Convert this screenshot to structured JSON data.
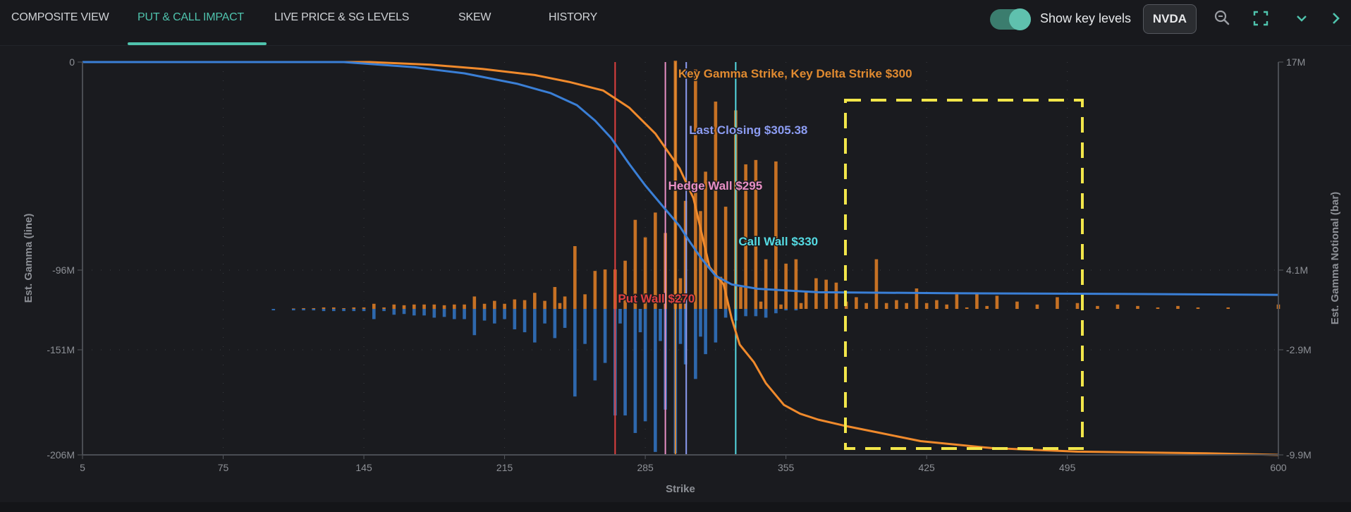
{
  "tabs": [
    {
      "label": "COMPOSITE VIEW",
      "active": false
    },
    {
      "label": "PUT & CALL IMPACT",
      "active": true
    },
    {
      "label": "LIVE PRICE & SG LEVELS",
      "active": false
    },
    {
      "label": "SKEW",
      "active": false
    },
    {
      "label": "HISTORY",
      "active": false
    }
  ],
  "controls": {
    "show_key_levels_label": "Show key levels",
    "show_key_levels_on": true,
    "ticker": "NVDA",
    "icons": [
      "zoom-out-icon",
      "fullscreen-icon",
      "chevron-down-icon",
      "chevron-right-icon"
    ]
  },
  "colors": {
    "accent": "#4fc3ad",
    "call_bar": "#d97b25",
    "put_bar": "#2f6db5",
    "gamma_line_orange": "#f08a2c",
    "gamma_line_blue": "#3a7fd6",
    "highlight_box": "#f2e64a"
  },
  "chart_data": {
    "type": "bar+line",
    "xlabel": "Strike",
    "ylabel_left": "Est. Gamma (line)",
    "ylabel_right": "Est. Gamma Notional (bar)",
    "xlim": [
      5,
      600
    ],
    "x_ticks": [
      "5",
      "75",
      "145",
      "215",
      "285",
      "355",
      "425",
      "495",
      "600"
    ],
    "y_left_ticks": [
      "0",
      "-96M",
      "-151M",
      "-206M"
    ],
    "y_right_ticks": [
      "17M",
      "4.1M",
      "-2.9M",
      "-9.9M"
    ],
    "y_left_range_M": [
      -206,
      0
    ],
    "y_right_range_M": [
      -9.9,
      17
    ],
    "key_levels": [
      {
        "label": "Put Wall $270",
        "strike": 270,
        "color": "#e0403f"
      },
      {
        "label": "Hedge Wall $295",
        "strike": 295,
        "color": "#e88fc4"
      },
      {
        "label": "Key Gamma Strike, Key Delta Strike $300",
        "strike": 300,
        "color": "#e08a30"
      },
      {
        "label": "Last Closing $305.38",
        "strike": 305.38,
        "color": "#8c9cf2"
      },
      {
        "label": "Call Wall $330",
        "strike": 330,
        "color": "#55dbe3"
      }
    ],
    "call_bars_M": [
      [
        110,
        0.03
      ],
      [
        115,
        0.05
      ],
      [
        120,
        0.05
      ],
      [
        125,
        0.1
      ],
      [
        130,
        0.1
      ],
      [
        135,
        0.05
      ],
      [
        140,
        0.1
      ],
      [
        145,
        0.1
      ],
      [
        150,
        0.35
      ],
      [
        155,
        0.1
      ],
      [
        160,
        0.3
      ],
      [
        165,
        0.25
      ],
      [
        170,
        0.3
      ],
      [
        175,
        0.3
      ],
      [
        180,
        0.3
      ],
      [
        185,
        0.25
      ],
      [
        190,
        0.3
      ],
      [
        195,
        0.3
      ],
      [
        200,
        0.85
      ],
      [
        205,
        0.35
      ],
      [
        210,
        0.55
      ],
      [
        215,
        0.35
      ],
      [
        220,
        0.65
      ],
      [
        225,
        0.6
      ],
      [
        230,
        1.1
      ],
      [
        235,
        0.55
      ],
      [
        240,
        1.5
      ],
      [
        242.5,
        0.4
      ],
      [
        245,
        0.85
      ],
      [
        250,
        4.3
      ],
      [
        255,
        1.0
      ],
      [
        260,
        2.6
      ],
      [
        265,
        2.7
      ],
      [
        270,
        2.7
      ],
      [
        275,
        3.3
      ],
      [
        280,
        6.1
      ],
      [
        285,
        4.9
      ],
      [
        290,
        6.6
      ],
      [
        295,
        5.2
      ],
      [
        300,
        17.0
      ],
      [
        302.5,
        2.1
      ],
      [
        305,
        7.4
      ],
      [
        310,
        16.4
      ],
      [
        312.5,
        6.7
      ],
      [
        315,
        9.4
      ],
      [
        320,
        14.2
      ],
      [
        322.5,
        2.2
      ],
      [
        325,
        7.0
      ],
      [
        330,
        13.6
      ],
      [
        332.5,
        1.5
      ],
      [
        335,
        9.9
      ],
      [
        340,
        10.2
      ],
      [
        342.5,
        0.5
      ],
      [
        345,
        3.4
      ],
      [
        350,
        10.1
      ],
      [
        352.5,
        0.3
      ],
      [
        355,
        3.1
      ],
      [
        360,
        3.4
      ],
      [
        362.5,
        0.4
      ],
      [
        365,
        1.2
      ],
      [
        370,
        2.1
      ],
      [
        375,
        2.0
      ],
      [
        380,
        1.8
      ],
      [
        385,
        0.5
      ],
      [
        390,
        0.8
      ],
      [
        395,
        0.4
      ],
      [
        400,
        3.4
      ],
      [
        405,
        0.4
      ],
      [
        410,
        0.6
      ],
      [
        415,
        0.4
      ],
      [
        420,
        1.4
      ],
      [
        425,
        0.4
      ],
      [
        430,
        0.6
      ],
      [
        435,
        0.3
      ],
      [
        440,
        1.0
      ],
      [
        445,
        0.1
      ],
      [
        450,
        1.1
      ],
      [
        455,
        0.2
      ],
      [
        460,
        0.9
      ],
      [
        470,
        0.5
      ],
      [
        480,
        0.3
      ],
      [
        490,
        0.8
      ],
      [
        500,
        0.4
      ],
      [
        510,
        0.2
      ],
      [
        520,
        0.3
      ],
      [
        530,
        0.2
      ],
      [
        540,
        0.1
      ],
      [
        550,
        0.2
      ],
      [
        560,
        0.1
      ],
      [
        575,
        0.1
      ],
      [
        600,
        0.3
      ]
    ],
    "put_bars_M": [
      [
        100,
        -0.1
      ],
      [
        110,
        -0.1
      ],
      [
        115,
        -0.1
      ],
      [
        120,
        -0.1
      ],
      [
        125,
        -0.15
      ],
      [
        130,
        -0.15
      ],
      [
        135,
        -0.15
      ],
      [
        140,
        -0.15
      ],
      [
        145,
        -0.15
      ],
      [
        150,
        -0.7
      ],
      [
        155,
        -0.15
      ],
      [
        160,
        -0.4
      ],
      [
        165,
        -0.35
      ],
      [
        170,
        -0.45
      ],
      [
        175,
        -0.45
      ],
      [
        180,
        -0.6
      ],
      [
        185,
        -0.55
      ],
      [
        190,
        -0.7
      ],
      [
        195,
        -0.7
      ],
      [
        200,
        -1.8
      ],
      [
        205,
        -0.8
      ],
      [
        210,
        -1.0
      ],
      [
        215,
        -0.7
      ],
      [
        220,
        -1.4
      ],
      [
        225,
        -1.6
      ],
      [
        230,
        -2.3
      ],
      [
        235,
        -1.0
      ],
      [
        240,
        -2.0
      ],
      [
        245,
        -1.3
      ],
      [
        250,
        -6.0
      ],
      [
        255,
        -2.4
      ],
      [
        260,
        -4.9
      ],
      [
        265,
        -3.7
      ],
      [
        270,
        -7.3
      ],
      [
        272.5,
        -1.0
      ],
      [
        275,
        -7.3
      ],
      [
        280,
        -8.5
      ],
      [
        282.5,
        -1.6
      ],
      [
        285,
        -7.7
      ],
      [
        290,
        -9.8
      ],
      [
        292.5,
        -2.2
      ],
      [
        295,
        -6.9
      ],
      [
        300,
        -9.9
      ],
      [
        302.5,
        -2.4
      ],
      [
        305,
        -3.8
      ],
      [
        310,
        -4.8
      ],
      [
        312.5,
        -1.9
      ],
      [
        315,
        -3.1
      ],
      [
        320,
        -2.3
      ],
      [
        325,
        -0.6
      ],
      [
        330,
        -0.8
      ],
      [
        335,
        -0.5
      ],
      [
        340,
        -0.5
      ],
      [
        345,
        -0.6
      ],
      [
        350,
        -0.3
      ],
      [
        355,
        -0.1
      ],
      [
        360,
        -0.1
      ]
    ],
    "series_lines_M": [
      {
        "name": "orange",
        "points": [
          [
            5,
            0
          ],
          [
            148,
            0
          ],
          [
            178,
            -1.4
          ],
          [
            204,
            -3.6
          ],
          [
            230,
            -6.8
          ],
          [
            247,
            -10.4
          ],
          [
            264,
            -14.9
          ],
          [
            277,
            -23.9
          ],
          [
            290,
            -37.5
          ],
          [
            302,
            -55.6
          ],
          [
            309,
            -71.4
          ],
          [
            313,
            -89.5
          ],
          [
            317,
            -107.5
          ],
          [
            324,
            -116.6
          ],
          [
            328,
            -134.6
          ],
          [
            332,
            -148.2
          ],
          [
            339,
            -157.3
          ],
          [
            345,
            -168.4
          ],
          [
            354,
            -179.8
          ],
          [
            362,
            -184.4
          ],
          [
            371,
            -187.5
          ],
          [
            384,
            -190.7
          ],
          [
            401,
            -194.3
          ],
          [
            422,
            -198.8
          ],
          [
            457,
            -202.4
          ],
          [
            500,
            -204.3
          ],
          [
            564,
            -205.2
          ],
          [
            600,
            -206
          ]
        ]
      },
      {
        "name": "blue",
        "points": [
          [
            5,
            0
          ],
          [
            135,
            0
          ],
          [
            170,
            -2.7
          ],
          [
            195,
            -5.9
          ],
          [
            221,
            -11.3
          ],
          [
            238,
            -16.3
          ],
          [
            251,
            -22.6
          ],
          [
            260,
            -30.7
          ],
          [
            268,
            -39.8
          ],
          [
            277,
            -53.4
          ],
          [
            285,
            -64.7
          ],
          [
            294,
            -76
          ],
          [
            302,
            -85.9
          ],
          [
            307,
            -94.0
          ],
          [
            313,
            -103.1
          ],
          [
            320,
            -112.1
          ],
          [
            328,
            -116.6
          ],
          [
            341,
            -118.9
          ],
          [
            371,
            -120.7
          ],
          [
            435,
            -121.2
          ],
          [
            521,
            -121.6
          ],
          [
            600,
            -122.1
          ]
        ]
      }
    ]
  }
}
